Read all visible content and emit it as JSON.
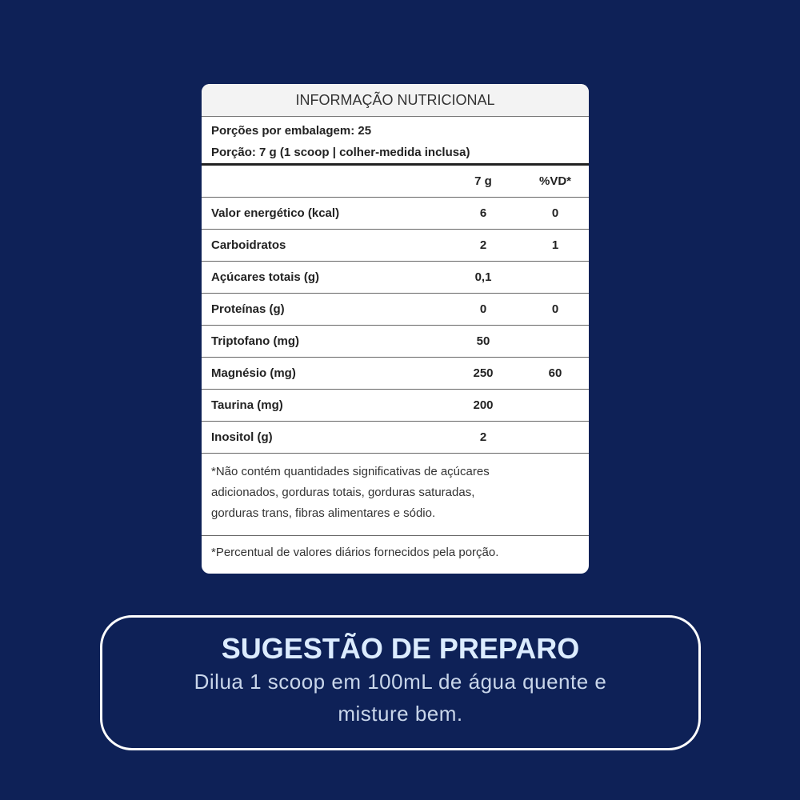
{
  "label": {
    "title": "INFORMAÇÃO NUTRICIONAL",
    "portions": "Porções por embalagem: 25",
    "serving": "Porção: 7 g (1 scoop | colher-medida inclusa)",
    "columns": [
      "7 g",
      "%VD*"
    ],
    "rows": [
      {
        "name": "Valor energético (kcal)",
        "amount": "6",
        "dv": "0"
      },
      {
        "name": "Carboidratos",
        "amount": "2",
        "dv": "1"
      },
      {
        "name": "Açúcares totais (g)",
        "amount": "0,1",
        "dv": null
      },
      {
        "name": "Proteínas (g)",
        "amount": "0",
        "dv": "0"
      },
      {
        "name": "Triptofano (mg)",
        "amount": "50",
        "dv": null
      },
      {
        "name": "Magnésio (mg)",
        "amount": "250",
        "dv": "60"
      },
      {
        "name": "Taurina (mg)",
        "amount": "200",
        "dv": null
      },
      {
        "name": "Inositol (g)",
        "amount": "2",
        "dv": null
      }
    ],
    "note_lines": [
      "*Não contém quantidades significativas de açúcares",
      "adicionados, gorduras totais, gorduras saturadas,",
      "gorduras trans, fibras alimentares e sódio."
    ],
    "dv_note": "*Percentual de valores diários fornecidos pela porção."
  },
  "preparation": {
    "title": "SUGESTÃO DE PREPARO",
    "text_lines": [
      "Dilua 1 scoop em 100mL de água quente e",
      "misture bem."
    ]
  }
}
